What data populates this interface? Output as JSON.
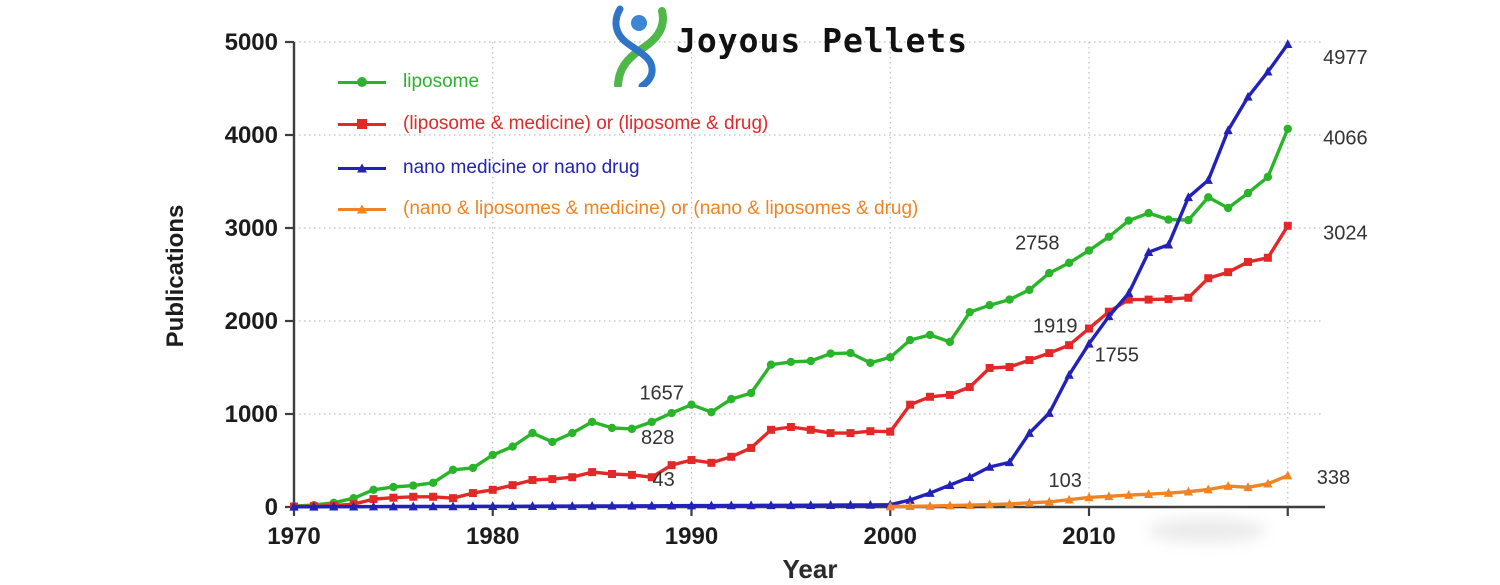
{
  "logo": {
    "brand": "Joyous Pellets",
    "icon": "person-dna-swoosh",
    "colors": {
      "blue": "#2e75c8",
      "head_blue": "#3c86d6",
      "green": "#4eb748"
    }
  },
  "chart_data": {
    "type": "line",
    "title": "",
    "xlabel": "Year",
    "ylabel": "Publications",
    "xlim": [
      1970,
      2020.5
    ],
    "ylim": [
      0,
      5000
    ],
    "x_ticks": [
      1970,
      1980,
      1990,
      2000,
      2010
    ],
    "x_gridlines": [
      1980,
      1990,
      2000,
      2010,
      2020
    ],
    "y_ticks": [
      0,
      1000,
      2000,
      3000,
      4000,
      5000
    ],
    "y_gridlines": [
      1000,
      2000,
      3000,
      4000,
      5000
    ],
    "grid_style": "dotted",
    "legend_position": "top-left",
    "axis_color": "#3d3d3d",
    "grid_color": "#bcbcbc",
    "annotation_color": "#333333",
    "years": [
      1970,
      1971,
      1972,
      1973,
      1974,
      1975,
      1976,
      1977,
      1978,
      1979,
      1980,
      1981,
      1982,
      1983,
      1984,
      1985,
      1986,
      1987,
      1988,
      1989,
      1990,
      1991,
      1992,
      1993,
      1994,
      1995,
      1996,
      1997,
      1998,
      1999,
      2000,
      2001,
      2002,
      2003,
      2004,
      2005,
      2006,
      2007,
      2008,
      2009,
      2010,
      2011,
      2012,
      2013,
      2014,
      2015,
      2016,
      2017,
      2018,
      2019,
      2020
    ],
    "series": [
      {
        "name": "liposome",
        "color": "#2ab42a",
        "marker": "circle",
        "values": [
          10,
          20,
          45,
          95,
          185,
          215,
          230,
          260,
          400,
          420,
          560,
          650,
          795,
          700,
          795,
          915,
          850,
          840,
          915,
          1010,
          1100,
          1020,
          1160,
          1225,
          1530,
          1560,
          1570,
          1650,
          1655,
          1550,
          1610,
          1795,
          1850,
          1775,
          2095,
          2170,
          2230,
          2335,
          2515,
          2625,
          2758,
          2905,
          3080,
          3160,
          3090,
          3085,
          3330,
          3215,
          3375,
          3550,
          4066
        ]
      },
      {
        "name": "(liposome & medicine) or (liposome & drug)",
        "color": "#e32828",
        "marker": "square",
        "values": [
          5,
          8,
          15,
          30,
          85,
          100,
          110,
          110,
          95,
          150,
          185,
          235,
          290,
          300,
          320,
          375,
          355,
          345,
          320,
          450,
          505,
          475,
          540,
          635,
          830,
          860,
          830,
          795,
          795,
          815,
          810,
          1100,
          1185,
          1205,
          1290,
          1495,
          1505,
          1580,
          1655,
          1740,
          1919,
          2100,
          2230,
          2230,
          2235,
          2250,
          2460,
          2525,
          2635,
          2680,
          3024
        ]
      },
      {
        "name": "nano medicine or nano drug",
        "color": "#2222b8",
        "marker": "triangle",
        "values": [
          2,
          2,
          3,
          3,
          4,
          5,
          5,
          6,
          6,
          7,
          8,
          8,
          9,
          10,
          10,
          11,
          12,
          12,
          13,
          14,
          15,
          15,
          16,
          17,
          18,
          18,
          19,
          20,
          21,
          22,
          25,
          75,
          150,
          235,
          320,
          430,
          480,
          795,
          1010,
          1420,
          1755,
          2050,
          2300,
          2740,
          2820,
          3330,
          3515,
          4050,
          4410,
          4680,
          4977
        ]
      },
      {
        "name": "(nano & liposomes & medicine) or (nano & liposomes & drug)",
        "color": "#ee8423",
        "marker": "triangle",
        "values": [
          null,
          null,
          null,
          null,
          null,
          null,
          null,
          null,
          null,
          null,
          null,
          null,
          null,
          null,
          null,
          null,
          null,
          null,
          null,
          null,
          null,
          null,
          null,
          null,
          null,
          null,
          null,
          null,
          null,
          null,
          5,
          8,
          10,
          15,
          20,
          25,
          32,
          45,
          55,
          78,
          103,
          115,
          128,
          138,
          150,
          165,
          188,
          225,
          212,
          250,
          338
        ]
      }
    ],
    "annotations": [
      {
        "text": "1657",
        "year": 1988.5,
        "value": 1230
      },
      {
        "text": "828",
        "year": 1988.3,
        "value": 755
      },
      {
        "text": "43",
        "year": 1988.6,
        "value": 300
      },
      {
        "text": "2758",
        "year": 2007.4,
        "value": 2845
      },
      {
        "text": "1919",
        "year": 2008.3,
        "value": 1950
      },
      {
        "text": "1755",
        "year": 2011.4,
        "value": 1640
      },
      {
        "text": "103",
        "year": 2008.8,
        "value": 290
      },
      {
        "text": "4977",
        "year": 2022.9,
        "value": 4840
      },
      {
        "text": "4066",
        "year": 2022.9,
        "value": 3975
      },
      {
        "text": "3024",
        "year": 2022.9,
        "value": 2950
      },
      {
        "text": "338",
        "year": 2022.3,
        "value": 325
      }
    ]
  }
}
